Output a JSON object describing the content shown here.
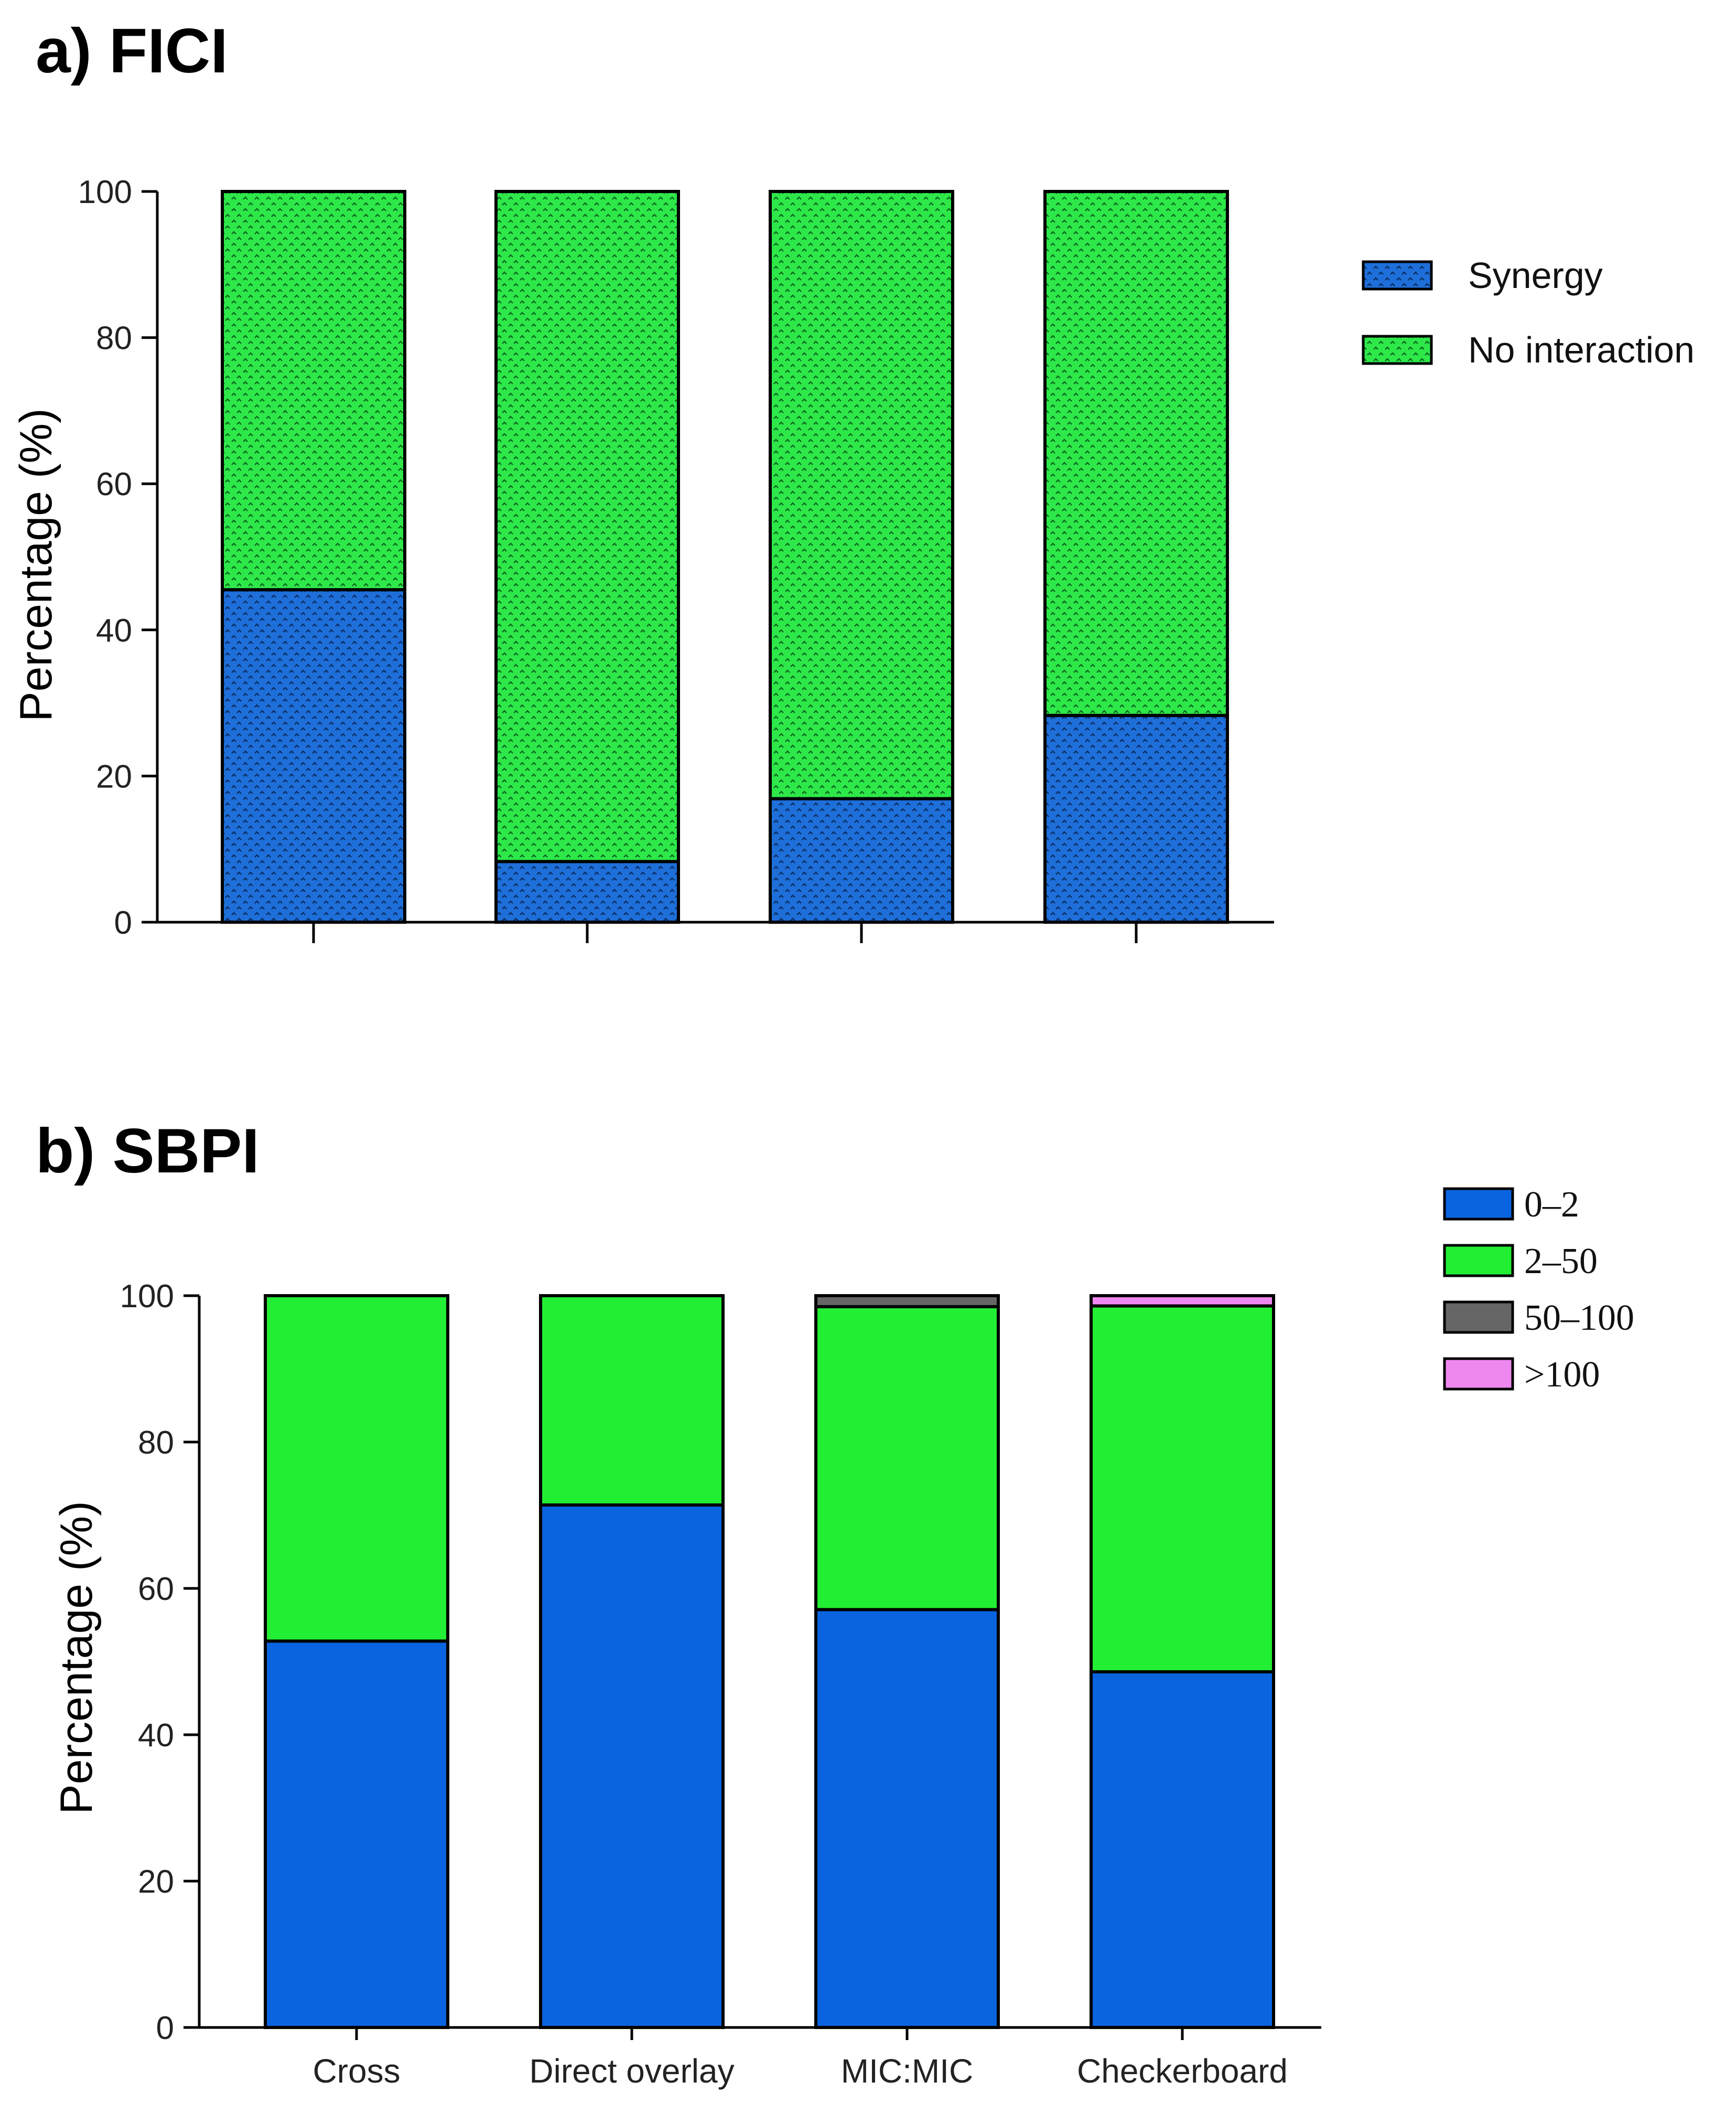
{
  "chart_data": [
    {
      "panel_title": "a) FICI",
      "type": "bar",
      "stacked": true,
      "ylabel": "Percentage (%)",
      "xlabel": "",
      "ylim": [
        0,
        100
      ],
      "yticks": [
        "0",
        "20",
        "40",
        "60",
        "80",
        "100"
      ],
      "categories": [
        "",
        "",
        "",
        ""
      ],
      "series": [
        {
          "name": "Synergy",
          "color": "#1e6fd9",
          "pattern": true,
          "values": [
            45.5,
            8.3,
            16.9,
            28.3
          ]
        },
        {
          "name": "No interaction",
          "color": "#2ee84a",
          "pattern": true,
          "values": [
            54.5,
            91.7,
            83.1,
            71.7
          ]
        }
      ],
      "legend_position": "right"
    },
    {
      "panel_title": "b) SBPI",
      "type": "bar",
      "stacked": true,
      "ylabel": "Percentage (%)",
      "xlabel": "",
      "ylim": [
        0,
        100
      ],
      "yticks": [
        "0",
        "20",
        "40",
        "60",
        "80",
        "100"
      ],
      "categories": [
        "Cross",
        "Direct overlay",
        "MIC:MIC",
        "Checkerboard"
      ],
      "series": [
        {
          "name": "0–2",
          "color": "#0a64e0",
          "pattern": false,
          "values": [
            52.8,
            71.4,
            57.1,
            48.6
          ]
        },
        {
          "name": "2–50",
          "color": "#22ee33",
          "pattern": false,
          "values": [
            47.2,
            28.6,
            41.4,
            50.0
          ]
        },
        {
          "name": "50–100",
          "color": "#666666",
          "pattern": false,
          "values": [
            0,
            0,
            1.5,
            0
          ]
        },
        {
          "name": ">100",
          "color": "#ee88f0",
          "pattern": false,
          "values": [
            0,
            0,
            0,
            1.4
          ]
        }
      ],
      "legend_position": "top-right"
    }
  ]
}
